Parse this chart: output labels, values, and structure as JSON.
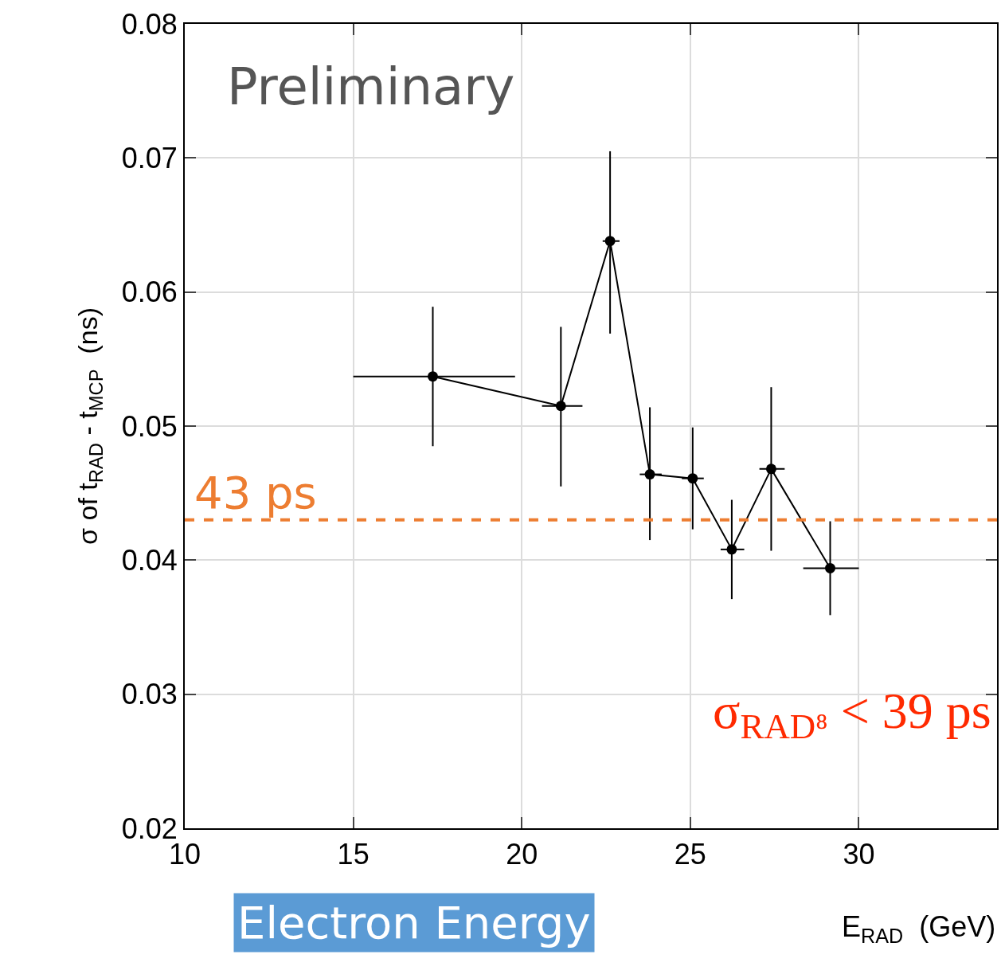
{
  "chart_data": {
    "type": "line",
    "xlabel": "E$_{RAD}$  (GeV)",
    "ylabel": "σ of t$_{RAD}$ - t$_{MCP}$  (ns)",
    "x": [
      17.36,
      21.16,
      22.62,
      23.8,
      25.07,
      26.23,
      27.4,
      29.15
    ],
    "series": [
      {
        "color": "#000000",
        "values": [
          0.0537,
          0.0515,
          0.0638,
          0.0464,
          0.0461,
          0.0408,
          0.0468,
          0.0394
        ],
        "errors": [
          [
            0.0485,
            0.0589
          ],
          [
            0.0455,
            0.0574
          ],
          [
            0.0569,
            0.0705
          ],
          [
            0.0415,
            0.0514
          ],
          [
            0.0423,
            0.0499
          ],
          [
            0.0371,
            0.0445
          ],
          [
            0.0407,
            0.0529
          ],
          [
            0.0359,
            0.0429
          ]
        ],
        "xerrors": [
          [
            15.0,
            19.8
          ],
          [
            20.6,
            21.8
          ],
          [
            22.4,
            22.9
          ],
          [
            23.5,
            24.15
          ],
          [
            24.75,
            25.4
          ],
          [
            25.9,
            26.6
          ],
          [
            27.05,
            27.8
          ],
          [
            28.35,
            30.0
          ]
        ]
      }
    ],
    "xlim": [
      10,
      34.1
    ],
    "xticks": [
      10,
      15,
      20,
      25,
      30
    ],
    "ylim": [
      0.02,
      0.08
    ],
    "yticks": [
      0.02,
      0.03,
      0.04,
      0.05,
      0.06,
      0.07,
      0.08
    ],
    "grid": true,
    "marker": "circle",
    "line_style": "solid",
    "ref_lines": [
      {
        "axis": "y",
        "value": 0.043,
        "label": "43 ps",
        "color": "#ed7d31",
        "line_style": "dashed"
      }
    ],
    "annotations": [
      "Preliminary",
      "σ$_{RAD⁸}$ < 39 ps",
      "Electron Energy"
    ]
  }
}
